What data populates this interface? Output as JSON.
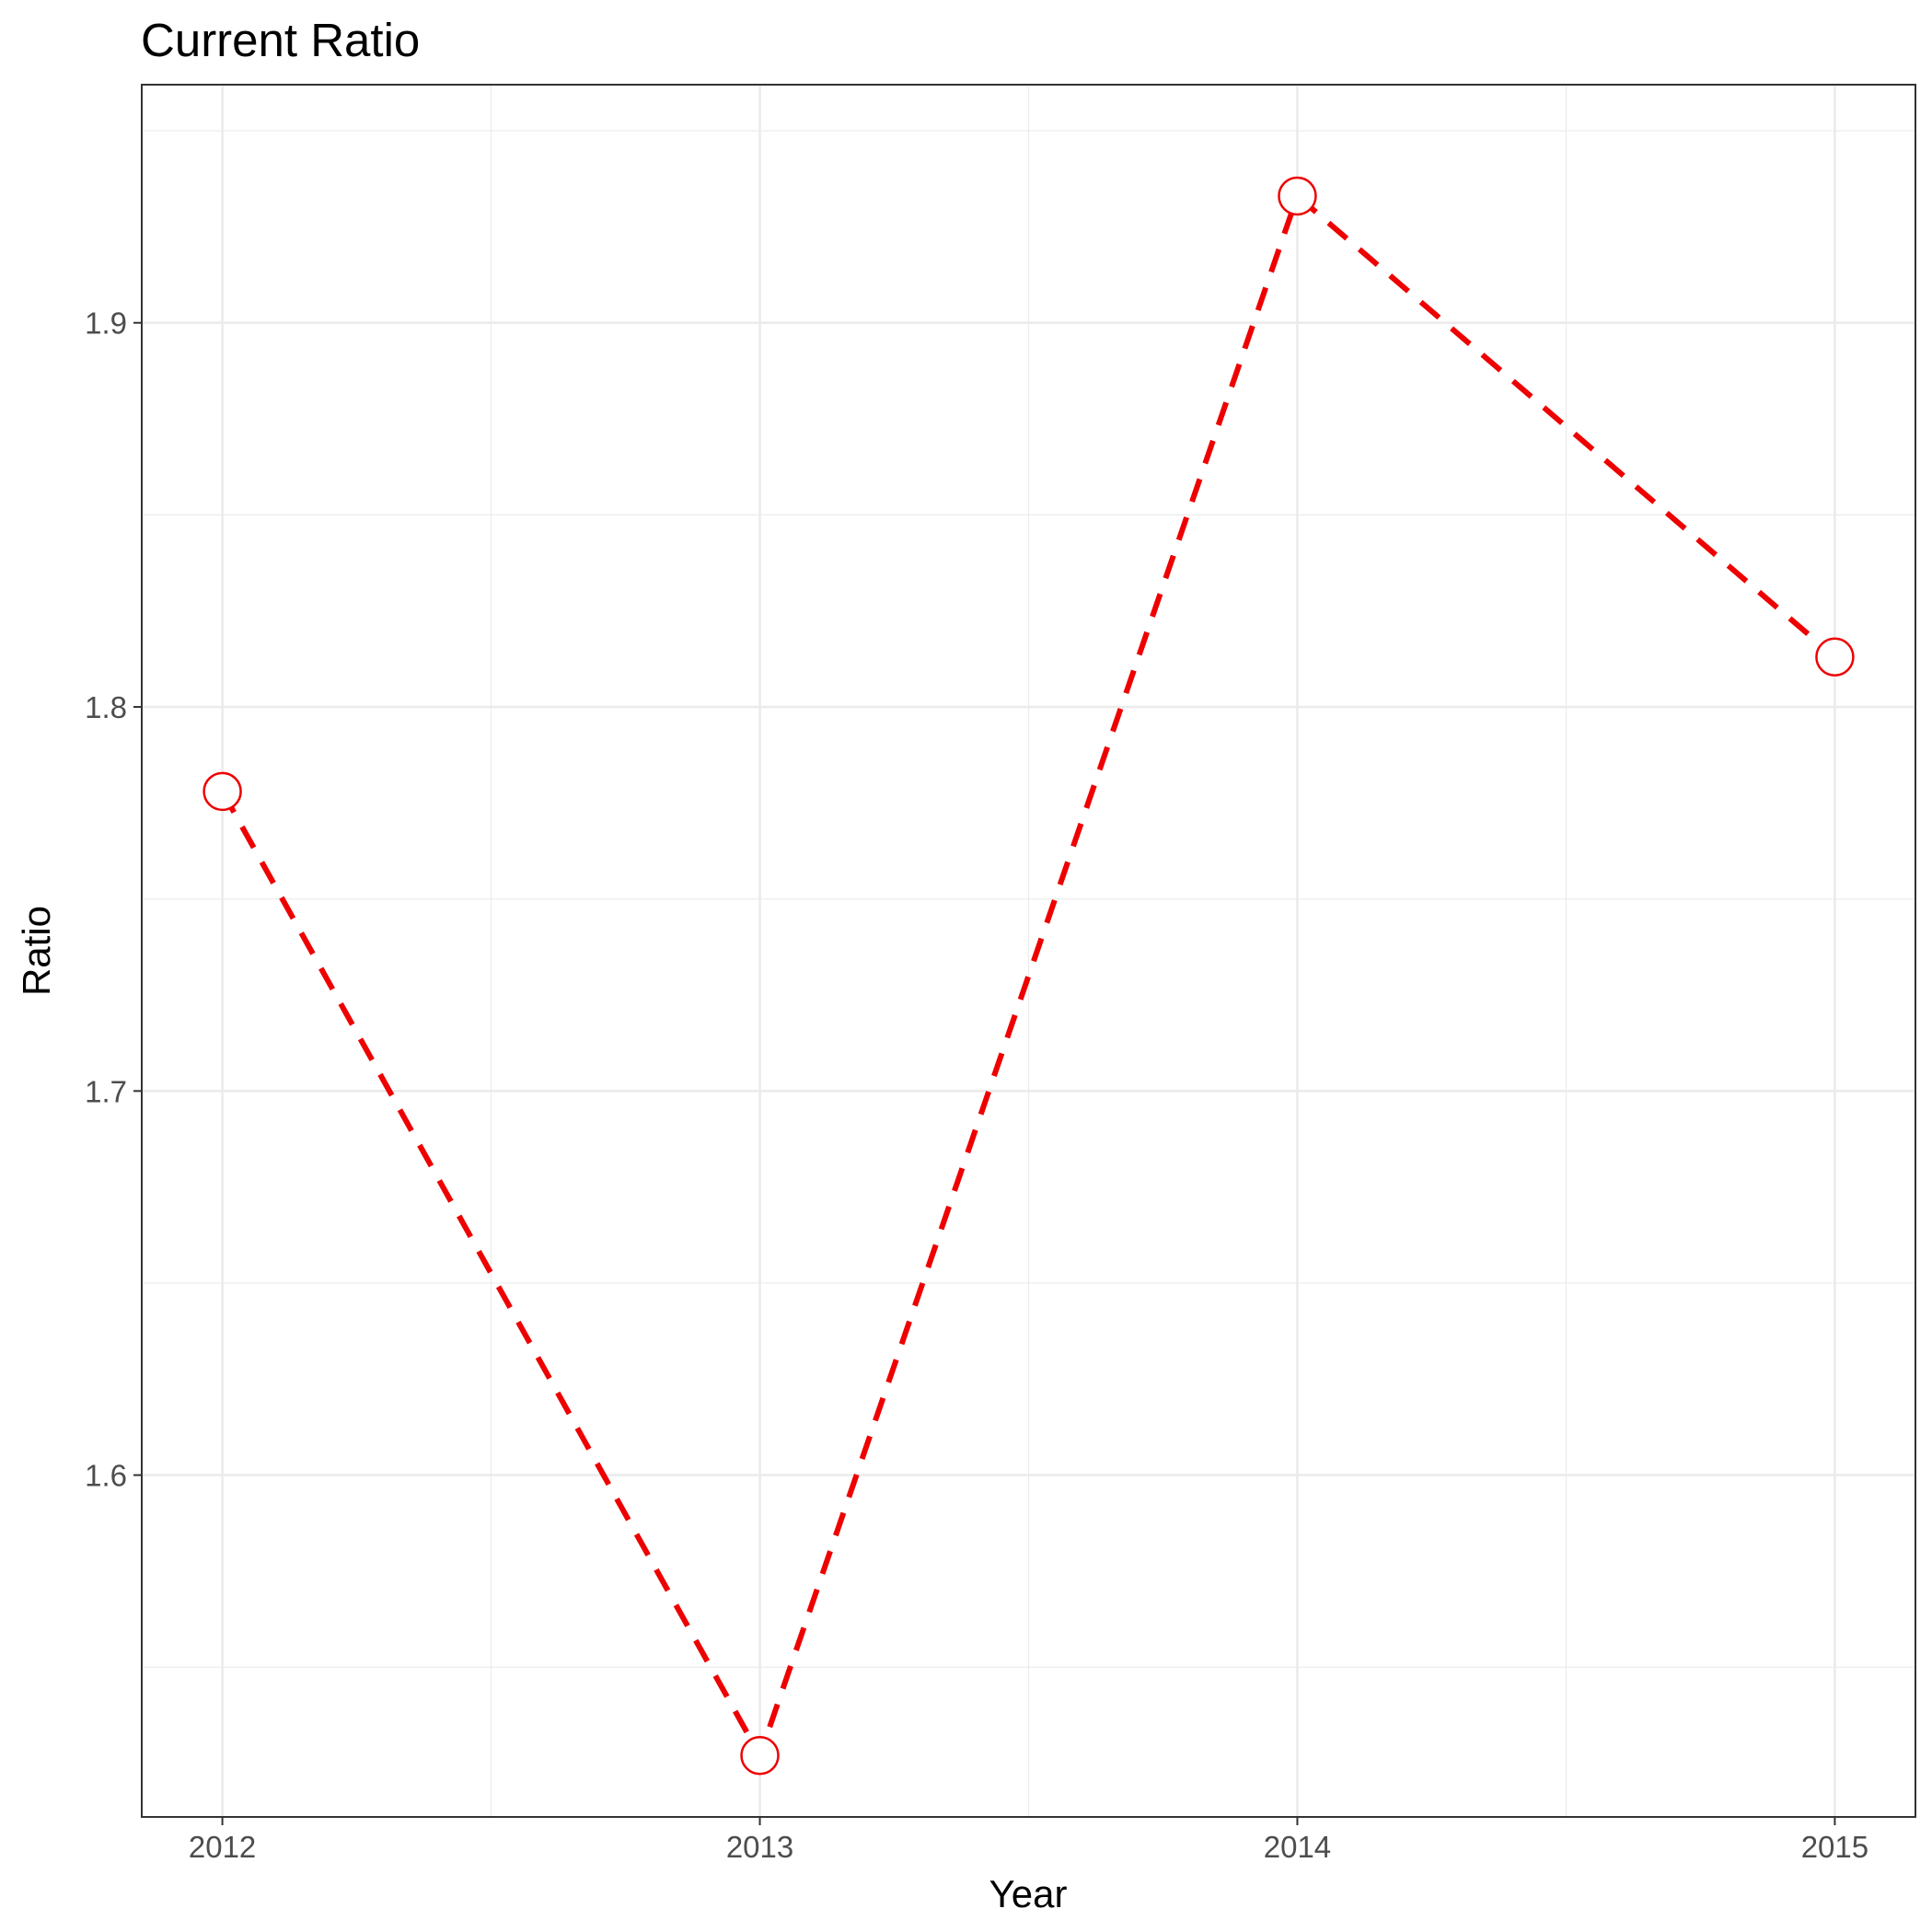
{
  "chart_data": {
    "type": "line",
    "title": "Current Ratio",
    "xlabel": "Year",
    "ylabel": "Ratio",
    "x": [
      2012,
      2013,
      2014,
      2015
    ],
    "x_ticks": [
      "2012",
      "2013",
      "2014",
      "2015"
    ],
    "xlim": [
      2011.85,
      2015.15
    ],
    "ylim": [
      1.511,
      1.962
    ],
    "y_ticks": [
      "1.6",
      "1.7",
      "1.8",
      "1.9"
    ],
    "y_tick_values": [
      1.6,
      1.7,
      1.8,
      1.9
    ],
    "y_minor_values": [
      1.55,
      1.65,
      1.75,
      1.85,
      1.95
    ],
    "x_minor_values": [
      2012.5,
      2013.5,
      2014.5
    ],
    "grid": true,
    "series": [
      {
        "values": [
          1.778,
          1.527,
          1.933,
          1.813
        ],
        "line_style": "dashed",
        "color": "#ee0000",
        "marker": "open-circle"
      }
    ]
  }
}
